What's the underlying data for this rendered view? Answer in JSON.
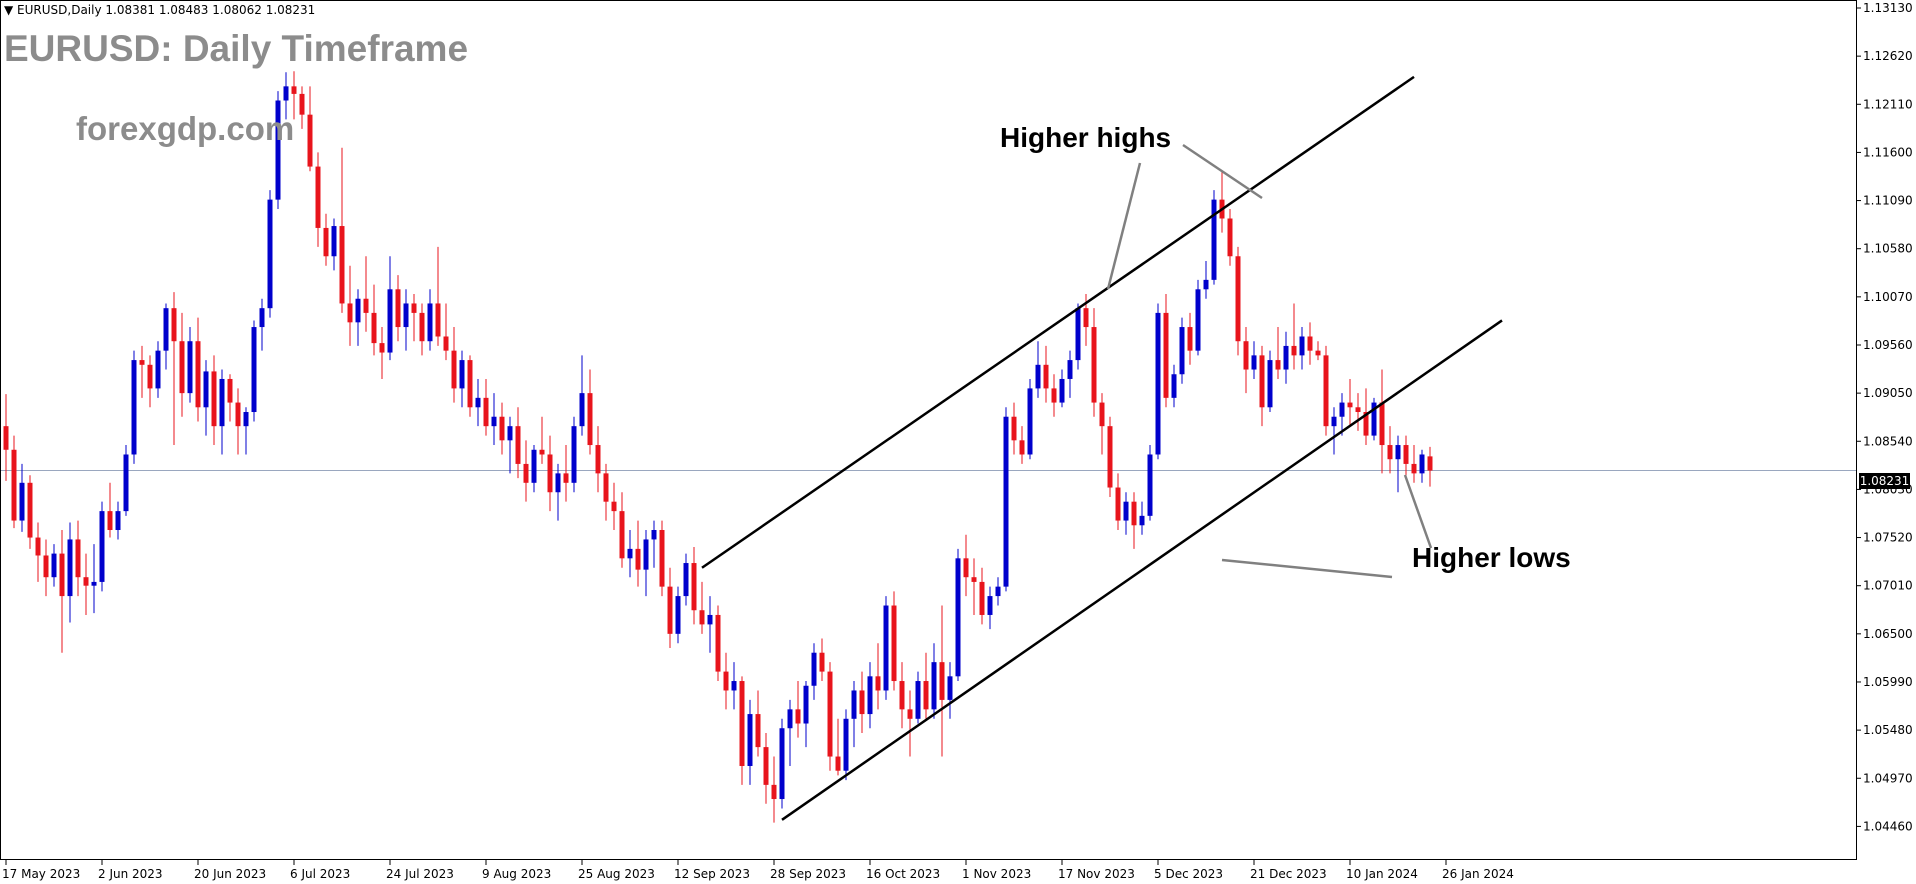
{
  "header": {
    "info": "▼ EURUSD,Daily  1.08381 1.08483 1.08062 1.08231",
    "title": "EURUSD: Daily Timeframe",
    "site": "forexgdp.com"
  },
  "annotations": {
    "higher_highs": "Higher highs",
    "higher_lows": "Higher lows"
  },
  "current_price_label": "1.08231",
  "colors": {
    "bull": "#0000cc",
    "bear": "#e8141c",
    "line": "#000000",
    "pointer": "#808080",
    "current": "#9aa7bf"
  },
  "chart_data": {
    "type": "candlestick",
    "symbol": "EURUSD",
    "timeframe": "Daily",
    "ylim": [
      1.0421,
      1.1313
    ],
    "y_ticks": [
      "1.13130",
      "1.12620",
      "1.12110",
      "1.11600",
      "1.11090",
      "1.10580",
      "1.10070",
      "1.09560",
      "1.09050",
      "1.08540",
      "1.08030",
      "1.07520",
      "1.07010",
      "1.06500",
      "1.05990",
      "1.05480",
      "1.04970",
      "1.04460"
    ],
    "x_ticks": [
      {
        "label": "17 May 2023",
        "idx": 0
      },
      {
        "label": "2 Jun 2023",
        "idx": 12
      },
      {
        "label": "20 Jun 2023",
        "idx": 24
      },
      {
        "label": "6 Jul 2023",
        "idx": 36
      },
      {
        "label": "24 Jul 2023",
        "idx": 48
      },
      {
        "label": "9 Aug 2023",
        "idx": 60
      },
      {
        "label": "25 Aug 2023",
        "idx": 72
      },
      {
        "label": "12 Sep 2023",
        "idx": 84
      },
      {
        "label": "28 Sep 2023",
        "idx": 96
      },
      {
        "label": "16 Oct 2023",
        "idx": 108
      },
      {
        "label": "1 Nov 2023",
        "idx": 120
      },
      {
        "label": "17 Nov 2023",
        "idx": 132
      },
      {
        "label": "5 Dec 2023",
        "idx": 144
      },
      {
        "label": "21 Dec 2023",
        "idx": 156
      },
      {
        "label": "10 Jan 2024",
        "idx": 168
      },
      {
        "label": "26 Jan 2024",
        "idx": 180
      }
    ],
    "current_price": 1.08231,
    "trendlines": [
      {
        "name": "upper channel",
        "from": {
          "idx": 87,
          "price": 1.072
        },
        "to": {
          "idx": 176,
          "price": 1.124
        }
      },
      {
        "name": "lower channel",
        "from": {
          "idx": 97,
          "price": 1.0453
        },
        "to": {
          "idx": 187,
          "price": 1.0982
        }
      }
    ],
    "candles": [
      {
        "o": 1.087,
        "h": 1.0904,
        "l": 1.0812,
        "c": 1.0845
      },
      {
        "o": 1.0845,
        "h": 1.086,
        "l": 1.0762,
        "c": 1.077
      },
      {
        "o": 1.077,
        "h": 1.083,
        "l": 1.0758,
        "c": 1.081
      },
      {
        "o": 1.081,
        "h": 1.0818,
        "l": 1.074,
        "c": 1.0752
      },
      {
        "o": 1.0752,
        "h": 1.0768,
        "l": 1.0705,
        "c": 1.0733
      },
      {
        "o": 1.0733,
        "h": 1.075,
        "l": 1.069,
        "c": 1.071
      },
      {
        "o": 1.071,
        "h": 1.0745,
        "l": 1.07,
        "c": 1.0735
      },
      {
        "o": 1.0735,
        "h": 1.076,
        "l": 1.063,
        "c": 1.069
      },
      {
        "o": 1.069,
        "h": 1.0768,
        "l": 1.0662,
        "c": 1.075
      },
      {
        "o": 1.075,
        "h": 1.077,
        "l": 1.069,
        "c": 1.071
      },
      {
        "o": 1.071,
        "h": 1.0735,
        "l": 1.067,
        "c": 1.0701
      },
      {
        "o": 1.0701,
        "h": 1.0745,
        "l": 1.0672,
        "c": 1.0705
      },
      {
        "o": 1.0705,
        "h": 1.079,
        "l": 1.0695,
        "c": 1.078
      },
      {
        "o": 1.078,
        "h": 1.081,
        "l": 1.0752,
        "c": 1.076
      },
      {
        "o": 1.076,
        "h": 1.079,
        "l": 1.075,
        "c": 1.078
      },
      {
        "o": 1.078,
        "h": 1.085,
        "l": 1.0775,
        "c": 1.084
      },
      {
        "o": 1.084,
        "h": 1.095,
        "l": 1.083,
        "c": 1.094
      },
      {
        "o": 1.094,
        "h": 1.0955,
        "l": 1.09,
        "c": 1.0935
      },
      {
        "o": 1.0935,
        "h": 1.0945,
        "l": 1.089,
        "c": 1.091
      },
      {
        "o": 1.091,
        "h": 1.096,
        "l": 1.09,
        "c": 1.095
      },
      {
        "o": 1.095,
        "h": 1.1,
        "l": 1.093,
        "c": 1.0995
      },
      {
        "o": 1.0995,
        "h": 1.1012,
        "l": 1.085,
        "c": 1.096
      },
      {
        "o": 1.096,
        "h": 1.099,
        "l": 1.088,
        "c": 1.0905
      },
      {
        "o": 1.0905,
        "h": 1.0975,
        "l": 1.0895,
        "c": 1.096
      },
      {
        "o": 1.096,
        "h": 1.0985,
        "l": 1.0875,
        "c": 1.089
      },
      {
        "o": 1.089,
        "h": 1.094,
        "l": 1.086,
        "c": 1.0928
      },
      {
        "o": 1.0928,
        "h": 1.0945,
        "l": 1.085,
        "c": 1.087
      },
      {
        "o": 1.087,
        "h": 1.093,
        "l": 1.084,
        "c": 1.092
      },
      {
        "o": 1.092,
        "h": 1.0925,
        "l": 1.0875,
        "c": 1.0895
      },
      {
        "o": 1.0895,
        "h": 1.091,
        "l": 1.084,
        "c": 1.087
      },
      {
        "o": 1.087,
        "h": 1.089,
        "l": 1.084,
        "c": 1.0885
      },
      {
        "o": 1.0885,
        "h": 1.0982,
        "l": 1.0875,
        "c": 1.0975
      },
      {
        "o": 1.0975,
        "h": 1.1005,
        "l": 1.095,
        "c": 1.0995
      },
      {
        "o": 1.0995,
        "h": 1.112,
        "l": 1.0985,
        "c": 1.111
      },
      {
        "o": 1.111,
        "h": 1.1225,
        "l": 1.11,
        "c": 1.1215
      },
      {
        "o": 1.1215,
        "h": 1.1245,
        "l": 1.1195,
        "c": 1.123
      },
      {
        "o": 1.123,
        "h": 1.1246,
        "l": 1.1195,
        "c": 1.1222
      },
      {
        "o": 1.1222,
        "h": 1.123,
        "l": 1.1185,
        "c": 1.12
      },
      {
        "o": 1.12,
        "h": 1.123,
        "l": 1.114,
        "c": 1.1145
      },
      {
        "o": 1.1145,
        "h": 1.116,
        "l": 1.106,
        "c": 1.108
      },
      {
        "o": 1.108,
        "h": 1.1095,
        "l": 1.104,
        "c": 1.105
      },
      {
        "o": 1.105,
        "h": 1.109,
        "l": 1.1035,
        "c": 1.1082
      },
      {
        "o": 1.1082,
        "h": 1.1165,
        "l": 1.099,
        "c": 1.1
      },
      {
        "o": 1.1,
        "h": 1.104,
        "l": 1.0955,
        "c": 1.098
      },
      {
        "o": 1.098,
        "h": 1.1015,
        "l": 1.0955,
        "c": 1.1005
      },
      {
        "o": 1.1005,
        "h": 1.105,
        "l": 1.097,
        "c": 1.099
      },
      {
        "o": 1.099,
        "h": 1.102,
        "l": 1.0945,
        "c": 1.0958
      },
      {
        "o": 1.0958,
        "h": 1.0975,
        "l": 1.092,
        "c": 1.0948
      },
      {
        "o": 1.0948,
        "h": 1.105,
        "l": 1.094,
        "c": 1.1015
      },
      {
        "o": 1.1015,
        "h": 1.103,
        "l": 1.096,
        "c": 1.0975
      },
      {
        "o": 1.0975,
        "h": 1.1015,
        "l": 1.095,
        "c": 1.1
      },
      {
        "o": 1.1,
        "h": 1.101,
        "l": 1.096,
        "c": 1.099
      },
      {
        "o": 1.099,
        "h": 1.1,
        "l": 1.0945,
        "c": 1.096
      },
      {
        "o": 1.096,
        "h": 1.1015,
        "l": 1.095,
        "c": 1.1
      },
      {
        "o": 1.1,
        "h": 1.106,
        "l": 1.0955,
        "c": 1.0965
      },
      {
        "o": 1.0965,
        "h": 1.1,
        "l": 1.094,
        "c": 1.095
      },
      {
        "o": 1.095,
        "h": 1.0975,
        "l": 1.0895,
        "c": 1.091
      },
      {
        "o": 1.091,
        "h": 1.095,
        "l": 1.089,
        "c": 1.094
      },
      {
        "o": 1.094,
        "h": 1.0945,
        "l": 1.088,
        "c": 1.089
      },
      {
        "o": 1.089,
        "h": 1.092,
        "l": 1.087,
        "c": 1.09
      },
      {
        "o": 1.09,
        "h": 1.092,
        "l": 1.086,
        "c": 1.087
      },
      {
        "o": 1.087,
        "h": 1.0905,
        "l": 1.085,
        "c": 1.088
      },
      {
        "o": 1.088,
        "h": 1.0895,
        "l": 1.084,
        "c": 1.0855
      },
      {
        "o": 1.0855,
        "h": 1.088,
        "l": 1.082,
        "c": 1.087
      },
      {
        "o": 1.087,
        "h": 1.089,
        "l": 1.0815,
        "c": 1.083
      },
      {
        "o": 1.083,
        "h": 1.0855,
        "l": 1.079,
        "c": 1.081
      },
      {
        "o": 1.081,
        "h": 1.085,
        "l": 1.08,
        "c": 1.0845
      },
      {
        "o": 1.0845,
        "h": 1.088,
        "l": 1.083,
        "c": 1.084
      },
      {
        "o": 1.084,
        "h": 1.086,
        "l": 1.078,
        "c": 1.08
      },
      {
        "o": 1.08,
        "h": 1.083,
        "l": 1.077,
        "c": 1.082
      },
      {
        "o": 1.082,
        "h": 1.085,
        "l": 1.079,
        "c": 1.081
      },
      {
        "o": 1.081,
        "h": 1.088,
        "l": 1.08,
        "c": 1.087
      },
      {
        "o": 1.087,
        "h": 1.0945,
        "l": 1.086,
        "c": 1.0905
      },
      {
        "o": 1.0905,
        "h": 1.093,
        "l": 1.084,
        "c": 1.085
      },
      {
        "o": 1.085,
        "h": 1.087,
        "l": 1.08,
        "c": 1.082
      },
      {
        "o": 1.082,
        "h": 1.083,
        "l": 1.077,
        "c": 1.079
      },
      {
        "o": 1.079,
        "h": 1.081,
        "l": 1.076,
        "c": 1.078
      },
      {
        "o": 1.078,
        "h": 1.08,
        "l": 1.072,
        "c": 1.073
      },
      {
        "o": 1.073,
        "h": 1.076,
        "l": 1.071,
        "c": 1.074
      },
      {
        "o": 1.074,
        "h": 1.077,
        "l": 1.07,
        "c": 1.0718
      },
      {
        "o": 1.0718,
        "h": 1.076,
        "l": 1.069,
        "c": 1.075
      },
      {
        "o": 1.075,
        "h": 1.077,
        "l": 1.072,
        "c": 1.076
      },
      {
        "o": 1.076,
        "h": 1.077,
        "l": 1.069,
        "c": 1.07
      },
      {
        "o": 1.07,
        "h": 1.072,
        "l": 1.0635,
        "c": 1.065
      },
      {
        "o": 1.065,
        "h": 1.07,
        "l": 1.064,
        "c": 1.069
      },
      {
        "o": 1.069,
        "h": 1.0735,
        "l": 1.068,
        "c": 1.0725
      },
      {
        "o": 1.0725,
        "h": 1.0742,
        "l": 1.066,
        "c": 1.0675
      },
      {
        "o": 1.0675,
        "h": 1.0705,
        "l": 1.065,
        "c": 1.066
      },
      {
        "o": 1.066,
        "h": 1.069,
        "l": 1.063,
        "c": 1.067
      },
      {
        "o": 1.067,
        "h": 1.068,
        "l": 1.06,
        "c": 1.061
      },
      {
        "o": 1.061,
        "h": 1.063,
        "l": 1.057,
        "c": 1.059
      },
      {
        "o": 1.059,
        "h": 1.062,
        "l": 1.057,
        "c": 1.06
      },
      {
        "o": 1.06,
        "h": 1.0605,
        "l": 1.049,
        "c": 1.051
      },
      {
        "o": 1.051,
        "h": 1.058,
        "l": 1.049,
        "c": 1.0565
      },
      {
        "o": 1.0565,
        "h": 1.059,
        "l": 1.052,
        "c": 1.053
      },
      {
        "o": 1.053,
        "h": 1.0545,
        "l": 1.047,
        "c": 1.049
      },
      {
        "o": 1.049,
        "h": 1.052,
        "l": 1.045,
        "c": 1.0475
      },
      {
        "o": 1.0475,
        "h": 1.056,
        "l": 1.0465,
        "c": 1.055
      },
      {
        "o": 1.055,
        "h": 1.058,
        "l": 1.051,
        "c": 1.057
      },
      {
        "o": 1.057,
        "h": 1.06,
        "l": 1.054,
        "c": 1.0555
      },
      {
        "o": 1.0555,
        "h": 1.06,
        "l": 1.053,
        "c": 1.0595
      },
      {
        "o": 1.0595,
        "h": 1.064,
        "l": 1.058,
        "c": 1.063
      },
      {
        "o": 1.063,
        "h": 1.0645,
        "l": 1.06,
        "c": 1.061
      },
      {
        "o": 1.061,
        "h": 1.062,
        "l": 1.0505,
        "c": 1.052
      },
      {
        "o": 1.052,
        "h": 1.056,
        "l": 1.05,
        "c": 1.0505
      },
      {
        "o": 1.0505,
        "h": 1.057,
        "l": 1.0495,
        "c": 1.056
      },
      {
        "o": 1.056,
        "h": 1.06,
        "l": 1.053,
        "c": 1.059
      },
      {
        "o": 1.059,
        "h": 1.061,
        "l": 1.0545,
        "c": 1.0565
      },
      {
        "o": 1.0565,
        "h": 1.062,
        "l": 1.055,
        "c": 1.0605
      },
      {
        "o": 1.0605,
        "h": 1.064,
        "l": 1.057,
        "c": 1.059
      },
      {
        "o": 1.059,
        "h": 1.069,
        "l": 1.058,
        "c": 1.068
      },
      {
        "o": 1.068,
        "h": 1.0695,
        "l": 1.059,
        "c": 1.06
      },
      {
        "o": 1.06,
        "h": 1.062,
        "l": 1.055,
        "c": 1.057
      },
      {
        "o": 1.057,
        "h": 1.059,
        "l": 1.052,
        "c": 1.056
      },
      {
        "o": 1.056,
        "h": 1.061,
        "l": 1.0555,
        "c": 1.06
      },
      {
        "o": 1.06,
        "h": 1.063,
        "l": 1.056,
        "c": 1.057
      },
      {
        "o": 1.057,
        "h": 1.064,
        "l": 1.056,
        "c": 1.062
      },
      {
        "o": 1.062,
        "h": 1.068,
        "l": 1.052,
        "c": 1.058
      },
      {
        "o": 1.058,
        "h": 1.062,
        "l": 1.056,
        "c": 1.0605
      },
      {
        "o": 1.0605,
        "h": 1.074,
        "l": 1.06,
        "c": 1.073
      },
      {
        "o": 1.073,
        "h": 1.0755,
        "l": 1.069,
        "c": 1.071
      },
      {
        "o": 1.071,
        "h": 1.073,
        "l": 1.067,
        "c": 1.0705
      },
      {
        "o": 1.0705,
        "h": 1.072,
        "l": 1.066,
        "c": 1.067
      },
      {
        "o": 1.067,
        "h": 1.07,
        "l": 1.0655,
        "c": 1.069
      },
      {
        "o": 1.069,
        "h": 1.071,
        "l": 1.068,
        "c": 1.07
      },
      {
        "o": 1.07,
        "h": 1.089,
        "l": 1.0695,
        "c": 1.088
      },
      {
        "o": 1.088,
        "h": 1.0895,
        "l": 1.084,
        "c": 1.0855
      },
      {
        "o": 1.0855,
        "h": 1.087,
        "l": 1.083,
        "c": 1.084
      },
      {
        "o": 1.084,
        "h": 1.092,
        "l": 1.0835,
        "c": 1.091
      },
      {
        "o": 1.091,
        "h": 1.096,
        "l": 1.09,
        "c": 1.0935
      },
      {
        "o": 1.0935,
        "h": 1.0955,
        "l": 1.0895,
        "c": 1.091
      },
      {
        "o": 1.091,
        "h": 1.0925,
        "l": 1.088,
        "c": 1.0895
      },
      {
        "o": 1.0895,
        "h": 1.093,
        "l": 1.089,
        "c": 1.092
      },
      {
        "o": 1.092,
        "h": 1.095,
        "l": 1.09,
        "c": 1.094
      },
      {
        "o": 1.094,
        "h": 1.1,
        "l": 1.093,
        "c": 1.0995
      },
      {
        "o": 1.0995,
        "h": 1.101,
        "l": 1.0955,
        "c": 1.0975
      },
      {
        "o": 1.0975,
        "h": 1.0995,
        "l": 1.088,
        "c": 1.0895
      },
      {
        "o": 1.0895,
        "h": 1.0905,
        "l": 1.084,
        "c": 1.087
      },
      {
        "o": 1.087,
        "h": 1.088,
        "l": 1.0795,
        "c": 1.0805
      },
      {
        "o": 1.0805,
        "h": 1.082,
        "l": 1.076,
        "c": 1.077
      },
      {
        "o": 1.077,
        "h": 1.08,
        "l": 1.0755,
        "c": 1.079
      },
      {
        "o": 1.079,
        "h": 1.08,
        "l": 1.074,
        "c": 1.0765
      },
      {
        "o": 1.0765,
        "h": 1.079,
        "l": 1.0755,
        "c": 1.0775
      },
      {
        "o": 1.0775,
        "h": 1.085,
        "l": 1.077,
        "c": 1.084
      },
      {
        "o": 1.084,
        "h": 1.1,
        "l": 1.0835,
        "c": 1.099
      },
      {
        "o": 1.099,
        "h": 1.101,
        "l": 1.089,
        "c": 1.09
      },
      {
        "o": 1.09,
        "h": 1.0935,
        "l": 1.089,
        "c": 1.0925
      },
      {
        "o": 1.0925,
        "h": 1.0985,
        "l": 1.0915,
        "c": 1.0975
      },
      {
        "o": 1.0975,
        "h": 1.099,
        "l": 1.0935,
        "c": 1.095
      },
      {
        "o": 1.095,
        "h": 1.1025,
        "l": 1.0945,
        "c": 1.1015
      },
      {
        "o": 1.1015,
        "h": 1.1045,
        "l": 1.1005,
        "c": 1.1025
      },
      {
        "o": 1.1025,
        "h": 1.112,
        "l": 1.102,
        "c": 1.111
      },
      {
        "o": 1.111,
        "h": 1.114,
        "l": 1.1075,
        "c": 1.109
      },
      {
        "o": 1.109,
        "h": 1.11,
        "l": 1.104,
        "c": 1.105
      },
      {
        "o": 1.105,
        "h": 1.106,
        "l": 1.0945,
        "c": 1.096
      },
      {
        "o": 1.096,
        "h": 1.0975,
        "l": 1.0905,
        "c": 1.093
      },
      {
        "o": 1.093,
        "h": 1.096,
        "l": 1.092,
        "c": 1.0945
      },
      {
        "o": 1.0945,
        "h": 1.0955,
        "l": 1.087,
        "c": 1.089
      },
      {
        "o": 1.089,
        "h": 1.095,
        "l": 1.0885,
        "c": 1.094
      },
      {
        "o": 1.094,
        "h": 1.0975,
        "l": 1.092,
        "c": 1.093
      },
      {
        "o": 1.093,
        "h": 1.097,
        "l": 1.0915,
        "c": 1.0955
      },
      {
        "o": 1.0955,
        "h": 1.1,
        "l": 1.093,
        "c": 1.0945
      },
      {
        "o": 1.0945,
        "h": 1.0975,
        "l": 1.093,
        "c": 1.0965
      },
      {
        "o": 1.0965,
        "h": 1.098,
        "l": 1.0935,
        "c": 1.095
      },
      {
        "o": 1.095,
        "h": 1.096,
        "l": 1.094,
        "c": 1.0945
      },
      {
        "o": 1.0945,
        "h": 1.0955,
        "l": 1.086,
        "c": 1.087
      },
      {
        "o": 1.087,
        "h": 1.089,
        "l": 1.084,
        "c": 1.088
      },
      {
        "o": 1.088,
        "h": 1.0905,
        "l": 1.086,
        "c": 1.0895
      },
      {
        "o": 1.0895,
        "h": 1.092,
        "l": 1.087,
        "c": 1.089
      },
      {
        "o": 1.089,
        "h": 1.0905,
        "l": 1.0865,
        "c": 1.0885
      },
      {
        "o": 1.0885,
        "h": 1.091,
        "l": 1.085,
        "c": 1.086
      },
      {
        "o": 1.086,
        "h": 1.09,
        "l": 1.0855,
        "c": 1.0895
      },
      {
        "o": 1.0895,
        "h": 1.093,
        "l": 1.082,
        "c": 1.085
      },
      {
        "o": 1.085,
        "h": 1.087,
        "l": 1.082,
        "c": 1.0835
      },
      {
        "o": 1.0835,
        "h": 1.086,
        "l": 1.08,
        "c": 1.085
      },
      {
        "o": 1.085,
        "h": 1.086,
        "l": 1.0815,
        "c": 1.083
      },
      {
        "o": 1.083,
        "h": 1.085,
        "l": 1.081,
        "c": 1.082
      },
      {
        "o": 1.082,
        "h": 1.0845,
        "l": 1.081,
        "c": 1.084
      },
      {
        "o": 1.0838,
        "h": 1.0848,
        "l": 1.0806,
        "c": 1.0823
      }
    ]
  }
}
